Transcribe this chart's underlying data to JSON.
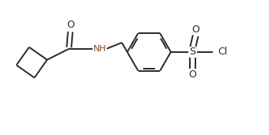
{
  "bg_color": "#ffffff",
  "line_color": "#2a2a2a",
  "text_color": "#2a2a2a",
  "nh_color": "#8B4513",
  "cl_color": "#2a2a2a",
  "line_width": 1.4,
  "figsize": [
    3.4,
    1.71
  ],
  "dpi": 100,
  "xlim": [
    0,
    340
  ],
  "ylim": [
    0,
    171
  ]
}
